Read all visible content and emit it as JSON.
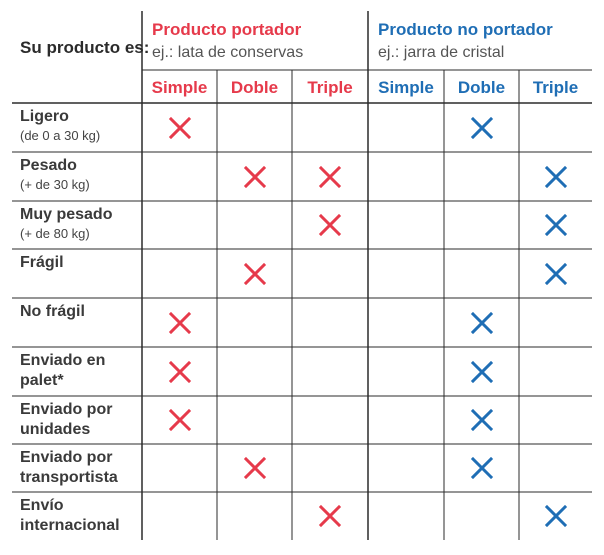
{
  "header": {
    "question": "Su producto es:",
    "groups": [
      {
        "title": "Producto portador",
        "subtitle": "ej.: lata de conservas",
        "color": "#e63a4b"
      },
      {
        "title": "Producto no portador",
        "subtitle": "ej.: jarra de cristal",
        "color": "#1f6eb5"
      }
    ],
    "columns": [
      {
        "label": "Simple",
        "group": 0
      },
      {
        "label": "Doble",
        "group": 0
      },
      {
        "label": "Triple",
        "group": 0
      },
      {
        "label": "Simple",
        "group": 1
      },
      {
        "label": "Doble",
        "group": 1
      },
      {
        "label": "Triple",
        "group": 1
      }
    ]
  },
  "rows": [
    {
      "label": "Ligero",
      "sublabel": "(de 0 a 30 kg)",
      "marks": [
        1,
        0,
        0,
        0,
        1,
        0
      ]
    },
    {
      "label": "Pesado",
      "sublabel": "(+ de 30 kg)",
      "marks": [
        0,
        1,
        1,
        0,
        0,
        1
      ]
    },
    {
      "label": "Muy pesado",
      "sublabel": "(+ de 80 kg)",
      "marks": [
        0,
        0,
        1,
        0,
        0,
        1
      ]
    },
    {
      "label": "Frágil",
      "sublabel": "",
      "marks": [
        0,
        1,
        0,
        0,
        0,
        1
      ]
    },
    {
      "label": "No frágil",
      "sublabel": "",
      "marks": [
        1,
        0,
        0,
        0,
        1,
        0
      ]
    },
    {
      "label": "Enviado en palet*",
      "sublabel": "",
      "marks": [
        1,
        0,
        0,
        0,
        1,
        0
      ]
    },
    {
      "label": "Enviado por unidades",
      "sublabel": "",
      "marks": [
        1,
        0,
        0,
        0,
        1,
        0
      ]
    },
    {
      "label": "Enviado por transportista",
      "sublabel": "",
      "marks": [
        0,
        1,
        0,
        0,
        1,
        0
      ]
    },
    {
      "label": "Envío internacional",
      "sublabel": "",
      "marks": [
        0,
        0,
        1,
        0,
        0,
        1
      ]
    }
  ],
  "colors": {
    "portador": "#e63a4b",
    "no_portador": "#1f6eb5",
    "grid": "#2b2b2b"
  },
  "icons": {
    "mark": "x-mark-icon"
  }
}
